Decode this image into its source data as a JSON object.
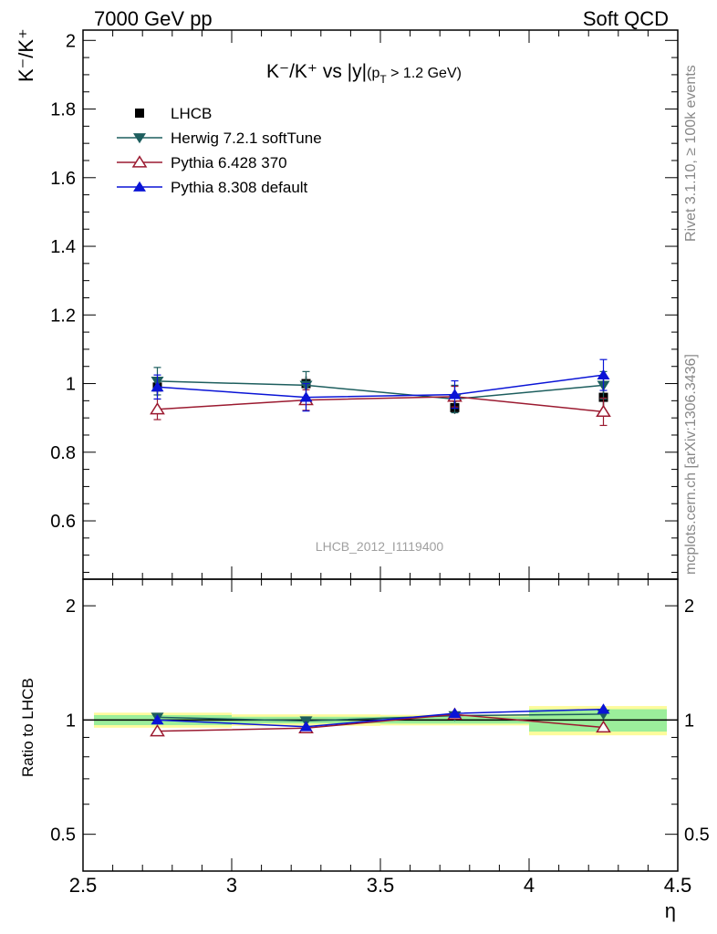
{
  "header": {
    "left": "7000 GeV pp",
    "right": "Soft QCD"
  },
  "side_labels": {
    "rivet": "Rivet 3.1.10, ≥ 100k events",
    "mcplots": "mcplots.cern.ch [arXiv:1306.3436]"
  },
  "watermark": "LHCB_2012_I1119400",
  "chart_data": {
    "type": "scatter",
    "title_parts": {
      "main": "K⁻/K⁺ vs |y|",
      "cut": "(p",
      "cut_sub": "T",
      "cut_rest": " > 1.2 GeV)"
    },
    "ylabel_main": "K⁻/K⁺",
    "ylabel_ratio": "Ratio to LHCB",
    "xlabel": "η",
    "xlim": [
      2.5,
      4.5
    ],
    "ylim_main": [
      0.43,
      2.03
    ],
    "ylim_ratio_log": [
      0.4,
      2.35
    ],
    "x_ticks": [
      "2.5",
      "3",
      "3.5",
      "4",
      "4.5"
    ],
    "x_tick_values": [
      2.5,
      3,
      3.5,
      4,
      4.5
    ],
    "y_ticks_main": [
      "0.6",
      "0.8",
      "1",
      "1.2",
      "1.4",
      "1.6",
      "1.8",
      "2"
    ],
    "y_tick_values_main": [
      0.6,
      0.8,
      1.0,
      1.2,
      1.4,
      1.6,
      1.8,
      2.0
    ],
    "y_ticks_ratio": [
      "0.5",
      "1",
      "2"
    ],
    "y_tick_values_ratio": [
      0.5,
      1,
      2
    ],
    "bins": [
      [
        2.5,
        3.0
      ],
      [
        3.0,
        3.5
      ],
      [
        3.5,
        4.0
      ],
      [
        4.0,
        4.5
      ]
    ],
    "x": [
      2.75,
      3.25,
      3.75,
      4.25
    ],
    "data": {
      "name": "LHCB",
      "values": [
        0.99,
        1.0,
        0.93,
        0.96
      ],
      "band_inner": [
        0.03,
        0.02,
        0.02,
        0.065
      ],
      "band_outer": [
        0.045,
        0.035,
        0.03,
        0.085
      ]
    },
    "series": [
      {
        "name": "Herwig 7.2.1 softTune",
        "color": "#1d5e5e",
        "marker": "triangle-down-filled",
        "values": [
          1.007,
          0.995,
          0.955,
          0.995
        ],
        "errors": [
          0.04,
          0.04,
          0.04,
          0.04
        ]
      },
      {
        "name": "Pythia 6.428 370",
        "color": "#9b1a30",
        "marker": "triangle-up-open",
        "values": [
          0.925,
          0.952,
          0.962,
          0.918
        ],
        "errors": [
          0.03,
          0.03,
          0.03,
          0.04
        ]
      },
      {
        "name": "Pythia 8.308 default",
        "color": "#0a14d6",
        "marker": "triangle-up-filled",
        "values": [
          0.99,
          0.96,
          0.968,
          1.025
        ],
        "errors": [
          0.035,
          0.04,
          0.04,
          0.045
        ]
      }
    ],
    "legend_position": "top-left",
    "grid": false
  }
}
